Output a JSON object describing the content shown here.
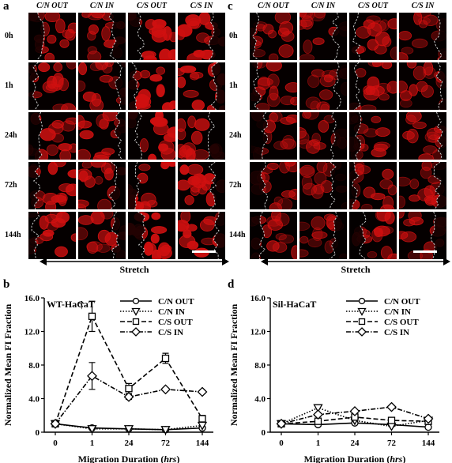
{
  "panels": {
    "a": {
      "letter": "a"
    },
    "b": {
      "letter": "b"
    },
    "c": {
      "letter": "c"
    },
    "d": {
      "letter": "d"
    }
  },
  "micro": {
    "columns": [
      "C/N OUT",
      "C/N IN",
      "C/S OUT",
      "C/S IN"
    ],
    "rows": [
      "0h",
      "1h",
      "24h",
      "72h",
      "144h"
    ],
    "stretch_label": "Stretch"
  },
  "colors": {
    "fluorescence": "#d01010",
    "background": "#050000",
    "mask": "#d8d8d8"
  },
  "chart_data": [
    {
      "type": "line",
      "panel": "b",
      "title": "WT-HaCaT",
      "xlabel": "Migration Duration (hrs)",
      "ylabel": "Normalized Mean FI Fraction",
      "categories": [
        "0",
        "1",
        "24",
        "72",
        "144"
      ],
      "yticks": [
        "0",
        "4.0",
        "8.0",
        "12.0",
        "16.0"
      ],
      "ylim": [
        0,
        16
      ],
      "annotation": "†",
      "legend_position": "top-right",
      "series": [
        {
          "name": "C/N OUT",
          "marker": "circle",
          "dash": "solid",
          "values": [
            1.0,
            0.5,
            0.4,
            0.3,
            0.5
          ]
        },
        {
          "name": "C/N IN",
          "marker": "triangle-down",
          "dash": "dotted",
          "values": [
            1.0,
            0.4,
            0.4,
            0.3,
            0.8
          ]
        },
        {
          "name": "C/S OUT",
          "marker": "square",
          "dash": "dashed",
          "values": [
            1.0,
            13.8,
            5.2,
            8.8,
            1.6
          ],
          "err": [
            0,
            1.8,
            0.6,
            0.6,
            0.4
          ]
        },
        {
          "name": "C/S IN",
          "marker": "diamond",
          "dash": "dashdot",
          "values": [
            1.0,
            6.7,
            4.2,
            5.1,
            4.8
          ],
          "err": [
            0,
            1.6,
            0.3,
            0.2,
            0.2
          ]
        }
      ]
    },
    {
      "type": "line",
      "panel": "d",
      "title": "Sil-HaCaT",
      "xlabel": "Migration Duration (hrs)",
      "ylabel": "Normalized Mean FI Fraction",
      "categories": [
        "0",
        "1",
        "24",
        "72",
        "144"
      ],
      "yticks": [
        "0",
        "4.0",
        "8.0",
        "12.0",
        "16.0"
      ],
      "ylim": [
        0,
        16
      ],
      "legend_position": "top-right",
      "series": [
        {
          "name": "C/N OUT",
          "marker": "circle",
          "dash": "solid",
          "values": [
            1.0,
            0.9,
            1.1,
            0.9,
            0.6
          ]
        },
        {
          "name": "C/N IN",
          "marker": "triangle-down",
          "dash": "dotted",
          "values": [
            1.0,
            2.9,
            1.4,
            0.7,
            1.4
          ]
        },
        {
          "name": "C/S OUT",
          "marker": "square",
          "dash": "dashed",
          "values": [
            1.0,
            1.3,
            1.8,
            1.4,
            1.3
          ]
        },
        {
          "name": "C/S IN",
          "marker": "diamond",
          "dash": "dashdot",
          "values": [
            1.0,
            2.1,
            2.5,
            3.0,
            1.6
          ]
        }
      ]
    }
  ]
}
